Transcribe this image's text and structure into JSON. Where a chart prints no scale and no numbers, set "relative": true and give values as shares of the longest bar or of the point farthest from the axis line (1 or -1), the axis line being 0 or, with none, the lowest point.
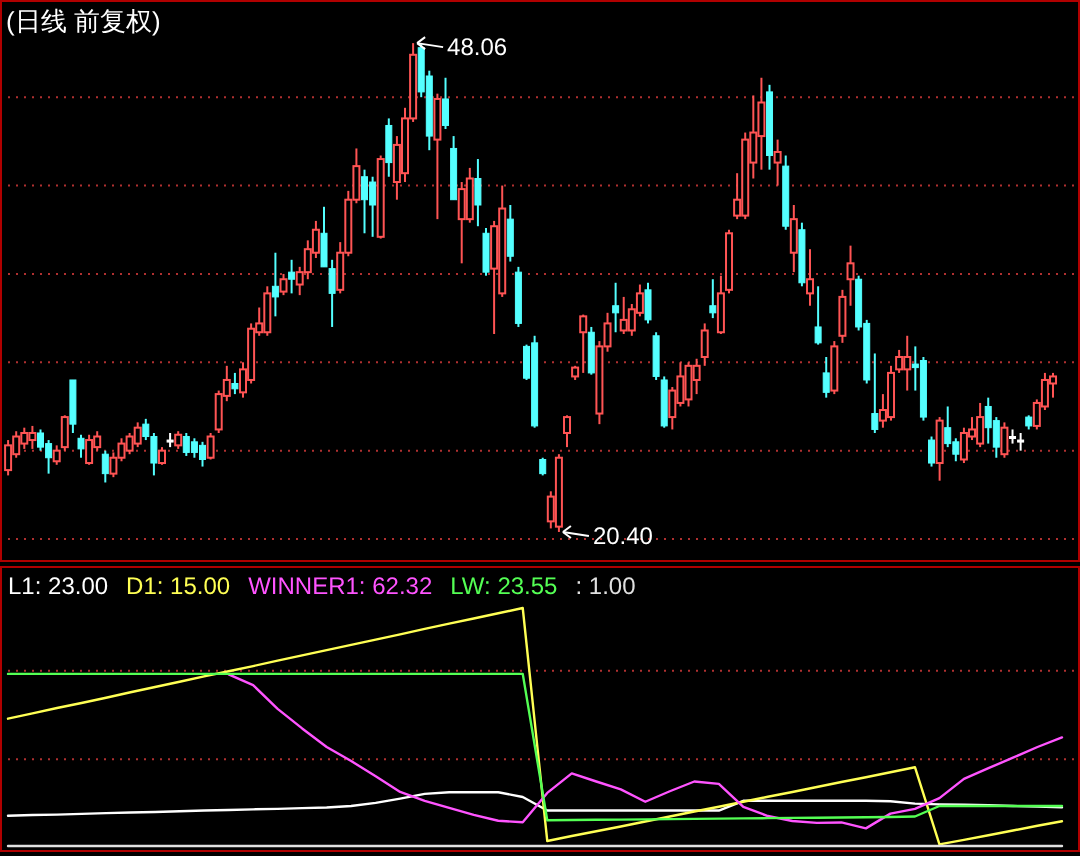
{
  "chart_data": [
    {
      "type": "candlestick",
      "title": "(日线 前复权)",
      "categories": [
        null,
        null,
        null,
        null,
        null,
        null,
        null,
        null,
        null,
        null,
        null,
        null,
        null,
        null,
        null,
        null,
        null,
        null,
        null,
        null,
        null,
        null,
        null,
        null,
        null,
        null,
        null,
        null,
        null,
        null,
        null,
        null,
        null,
        null,
        null,
        null,
        null,
        null,
        null,
        null,
        null,
        null,
        null,
        null,
        null,
        null,
        null,
        null,
        null,
        null,
        null,
        null,
        null,
        null,
        null,
        null,
        null,
        null,
        null,
        null,
        null,
        null,
        null,
        null,
        null,
        null,
        null,
        null,
        null,
        null,
        null,
        null,
        null,
        null,
        null,
        null,
        null,
        null,
        null,
        null,
        null,
        null,
        null,
        null,
        null,
        null,
        null,
        null,
        null,
        null,
        null,
        null,
        null,
        null,
        null,
        null,
        null,
        null,
        null,
        null,
        null,
        null,
        null,
        null,
        null,
        null,
        null,
        null,
        null,
        null,
        null,
        null,
        null,
        null,
        null,
        null,
        null,
        null,
        null,
        null,
        null,
        null,
        null,
        null,
        null,
        null,
        null,
        null,
        null,
        null
      ],
      "ohlc": [
        [
          23.9,
          25.6,
          23.6,
          25.3
        ],
        [
          24.8,
          26.1,
          24.6,
          25.8
        ],
        [
          25.4,
          26.3,
          25.1,
          26.0
        ],
        [
          25.6,
          26.4,
          25.1,
          26.0
        ],
        [
          26.0,
          26.2,
          25.0,
          25.2
        ],
        [
          25.4,
          25.6,
          23.7,
          24.6
        ],
        [
          24.4,
          25.3,
          24.2,
          25.0
        ],
        [
          25.2,
          27.0,
          25.0,
          26.9
        ],
        [
          29.0,
          29.0,
          26.0,
          26.5
        ],
        [
          25.7,
          25.9,
          24.6,
          25.1
        ],
        [
          24.3,
          25.9,
          24.2,
          25.6
        ],
        [
          25.2,
          26.1,
          25.0,
          25.8
        ],
        [
          24.8,
          25.0,
          23.2,
          23.7
        ],
        [
          23.7,
          24.9,
          23.5,
          24.6
        ],
        [
          24.6,
          25.7,
          24.4,
          25.4
        ],
        [
          25.0,
          26.0,
          24.8,
          25.8
        ],
        [
          25.4,
          26.6,
          25.2,
          26.3
        ],
        [
          26.5,
          26.8,
          25.6,
          25.8
        ],
        [
          25.8,
          26.0,
          23.6,
          24.3
        ],
        [
          24.3,
          25.2,
          24.2,
          25.0
        ],
        [
          25.6,
          26.0,
          25.2,
          25.6
        ],
        [
          25.3,
          26.1,
          25.1,
          25.9
        ],
        [
          25.8,
          26.0,
          24.7,
          24.9
        ],
        [
          25.5,
          25.7,
          24.6,
          24.9
        ],
        [
          25.3,
          25.5,
          24.1,
          24.5
        ],
        [
          24.6,
          26.0,
          24.5,
          25.8
        ],
        [
          26.2,
          28.4,
          26.0,
          28.2
        ],
        [
          28.1,
          29.8,
          27.8,
          29.0
        ],
        [
          28.8,
          29.4,
          28.2,
          28.5
        ],
        [
          28.3,
          30.0,
          28.0,
          29.6
        ],
        [
          29.0,
          32.2,
          28.8,
          31.9
        ],
        [
          31.7,
          33.1,
          31.5,
          32.2
        ],
        [
          31.7,
          34.3,
          31.5,
          33.9
        ],
        [
          34.3,
          36.2,
          32.6,
          33.7
        ],
        [
          34.0,
          35.0,
          33.8,
          34.7
        ],
        [
          35.1,
          35.8,
          33.9,
          34.7
        ],
        [
          34.4,
          35.4,
          33.8,
          35.1
        ],
        [
          35.1,
          36.9,
          34.7,
          36.4
        ],
        [
          36.2,
          38.0,
          35.9,
          37.5
        ],
        [
          37.3,
          38.8,
          35.4,
          35.4
        ],
        [
          35.3,
          35.8,
          32.0,
          33.9
        ],
        [
          34.1,
          36.8,
          33.9,
          36.2
        ],
        [
          36.2,
          39.7,
          36.0,
          39.2
        ],
        [
          39.2,
          42.1,
          39.0,
          41.1
        ],
        [
          40.5,
          40.9,
          37.3,
          39.2
        ],
        [
          40.2,
          40.5,
          37.1,
          38.9
        ],
        [
          37.1,
          41.7,
          37.0,
          41.5
        ],
        [
          43.4,
          43.8,
          40.5,
          41.3
        ],
        [
          40.2,
          42.8,
          39.2,
          42.3
        ],
        [
          40.7,
          44.4,
          40.2,
          43.8
        ],
        [
          43.8,
          48.06,
          43.6,
          47.4
        ],
        [
          47.8,
          48.0,
          45.0,
          45.3
        ],
        [
          46.2,
          46.5,
          42.0,
          42.8
        ],
        [
          42.6,
          45.2,
          38.1,
          44.9
        ],
        [
          44.9,
          46.1,
          43.2,
          43.4
        ],
        [
          42.1,
          42.8,
          39.2,
          39.2
        ],
        [
          38.1,
          40.2,
          35.6,
          39.8
        ],
        [
          38.1,
          41.0,
          37.9,
          40.4
        ],
        [
          40.4,
          41.5,
          37.7,
          38.9
        ],
        [
          37.3,
          37.6,
          34.9,
          35.1
        ],
        [
          35.3,
          38.0,
          31.6,
          37.7
        ],
        [
          33.9,
          40.0,
          33.7,
          38.7
        ],
        [
          38.1,
          38.9,
          35.7,
          36.0
        ],
        [
          35.1,
          35.4,
          32.0,
          32.2
        ],
        [
          30.9,
          31.0,
          29.0,
          29.1
        ],
        [
          31.1,
          31.5,
          26.3,
          26.4
        ],
        [
          24.5,
          24.6,
          23.6,
          23.7
        ],
        [
          21.0,
          22.7,
          20.6,
          22.4
        ],
        [
          20.7,
          24.8,
          20.4,
          24.6
        ],
        [
          26.0,
          27.0,
          25.2,
          26.9
        ],
        [
          29.2,
          29.8,
          29.0,
          29.7
        ],
        [
          31.7,
          32.7,
          29.4,
          32.6
        ],
        [
          31.7,
          32.0,
          29.3,
          29.4
        ],
        [
          27.1,
          31.2,
          26.5,
          30.9
        ],
        [
          30.9,
          32.8,
          30.6,
          32.2
        ],
        [
          33.2,
          34.5,
          31.7,
          32.8
        ],
        [
          31.8,
          33.7,
          31.6,
          32.4
        ],
        [
          31.8,
          33.3,
          31.5,
          33.0
        ],
        [
          32.8,
          34.4,
          32.6,
          33.9
        ],
        [
          34.1,
          34.5,
          32.2,
          32.4
        ],
        [
          31.5,
          31.7,
          29.0,
          29.2
        ],
        [
          29.0,
          29.2,
          26.3,
          26.4
        ],
        [
          26.9,
          28.6,
          26.2,
          28.4
        ],
        [
          27.7,
          30.0,
          27.5,
          29.2
        ],
        [
          27.9,
          30.0,
          27.5,
          29.8
        ],
        [
          29.0,
          30.2,
          28.2,
          29.8
        ],
        [
          30.3,
          32.2,
          29.8,
          31.8
        ],
        [
          33.2,
          34.7,
          32.5,
          32.8
        ],
        [
          31.7,
          34.9,
          31.6,
          33.9
        ],
        [
          34.1,
          37.5,
          33.9,
          37.3
        ],
        [
          38.3,
          40.7,
          38.1,
          39.2
        ],
        [
          38.3,
          43.0,
          38.1,
          42.6
        ],
        [
          41.3,
          45.1,
          40.4,
          43.0
        ],
        [
          42.8,
          46.1,
          40.9,
          44.7
        ],
        [
          45.3,
          45.7,
          40.9,
          41.7
        ],
        [
          41.3,
          42.6,
          40.0,
          41.9
        ],
        [
          41.1,
          41.7,
          37.5,
          37.7
        ],
        [
          36.2,
          38.9,
          35.1,
          38.1
        ],
        [
          37.5,
          37.9,
          34.3,
          34.5
        ],
        [
          33.9,
          36.4,
          33.2,
          34.7
        ],
        [
          32.0,
          34.3,
          31.0,
          31.1
        ],
        [
          29.4,
          30.3,
          28.0,
          28.3
        ],
        [
          28.4,
          31.2,
          28.2,
          30.9
        ],
        [
          31.5,
          34.1,
          31.1,
          33.7
        ],
        [
          34.7,
          36.6,
          33.2,
          35.6
        ],
        [
          34.7,
          34.9,
          31.8,
          32.0
        ],
        [
          32.2,
          32.4,
          28.8,
          29.0
        ],
        [
          27.1,
          30.5,
          26.0,
          26.2
        ],
        [
          26.7,
          28.2,
          26.3,
          27.3
        ],
        [
          26.9,
          29.8,
          26.7,
          29.4
        ],
        [
          29.6,
          30.7,
          29.4,
          30.3
        ],
        [
          29.6,
          31.5,
          28.4,
          30.3
        ],
        [
          29.9,
          30.9,
          28.4,
          29.7
        ],
        [
          30.1,
          30.3,
          26.7,
          26.9
        ],
        [
          25.6,
          25.8,
          24.1,
          24.3
        ],
        [
          24.3,
          26.9,
          23.3,
          26.7
        ],
        [
          26.3,
          27.5,
          25.2,
          25.4
        ],
        [
          25.5,
          25.7,
          24.4,
          24.8
        ],
        [
          24.5,
          26.3,
          24.3,
          26.0
        ],
        [
          25.8,
          26.9,
          25.6,
          26.2
        ],
        [
          25.4,
          27.7,
          25.2,
          26.9
        ],
        [
          27.5,
          28.0,
          25.4,
          26.3
        ],
        [
          26.7,
          26.9,
          24.6,
          25.2
        ],
        [
          24.8,
          26.6,
          24.6,
          26.3
        ],
        [
          25.8,
          26.2,
          25.4,
          25.8
        ],
        [
          25.6,
          26.0,
          25.0,
          25.6
        ],
        [
          26.9,
          27.0,
          26.2,
          26.4
        ],
        [
          26.4,
          27.9,
          26.2,
          27.7
        ],
        [
          27.5,
          29.4,
          27.3,
          29.0
        ],
        [
          28.8,
          29.4,
          28.0,
          29.2
        ]
      ],
      "ylim": [
        18.7,
        50.5
      ],
      "yticks": [
        {
          "value": 20,
          "label": null
        },
        {
          "value": 25,
          "label": null
        },
        {
          "value": 30,
          "label": null
        },
        {
          "value": 35,
          "label": null
        },
        {
          "value": 40,
          "label": null
        },
        {
          "value": 45,
          "label": null
        }
      ],
      "grid": "y",
      "annotations": [
        "48.06",
        "20.40"
      ]
    },
    {
      "type": "line",
      "relative": true,
      "line_style": "solid",
      "categories": [
        null,
        null,
        null,
        null,
        null,
        null,
        null,
        null,
        null,
        null,
        null,
        null,
        null,
        null,
        null,
        null,
        null,
        null,
        null,
        null,
        null,
        null,
        null,
        null,
        null,
        null,
        null,
        null,
        null,
        null,
        null,
        null,
        null,
        null,
        null,
        null,
        null,
        null,
        null,
        null,
        null,
        null,
        null,
        null
      ],
      "ref_lines": [
        {
          "axis": "y",
          "value": 0.364,
          "color": "#b03030",
          "line_style": "dotted"
        },
        {
          "axis": "y",
          "value": 0.736,
          "color": "#b03030",
          "line_style": "dotted"
        }
      ],
      "series": [
        {
          "name": "L1: 23.00",
          "color": "#ffffff",
          "values": [
            0.127,
            0.13,
            0.132,
            0.135,
            0.138,
            0.141,
            0.143,
            0.146,
            0.149,
            0.151,
            0.154,
            0.156,
            0.159,
            0.162,
            0.168,
            0.181,
            0.199,
            0.219,
            0.226,
            0.226,
            0.226,
            0.206,
            0.149,
            0.149,
            0.149,
            0.149,
            0.149,
            0.149,
            0.149,
            0.149,
            0.19,
            0.19,
            0.19,
            0.19,
            0.19,
            0.19,
            0.188,
            0.178,
            0.175,
            0.173,
            0.171,
            0.168,
            0.166,
            0.163
          ]
        },
        {
          "name": "D1: 15.00",
          "color": "#ffff54",
          "values": [
            0.535,
            0.557,
            0.58,
            0.601,
            0.623,
            0.646,
            0.668,
            0.69,
            0.713,
            0.734,
            0.756,
            0.779,
            0.801,
            0.823,
            0.845,
            0.867,
            0.889,
            0.912,
            0.934,
            0.956,
            0.978,
            1,
            0.021,
            0.042,
            0.062,
            0.082,
            0.103,
            0.124,
            0.145,
            0.165,
            0.186,
            0.207,
            0.227,
            0.248,
            0.269,
            0.289,
            0.31,
            0.331,
            0.007,
            0.026,
            0.045,
            0.065,
            0.085,
            0.104
          ]
        },
        {
          "name": "WINNER1: 62.32",
          "color": "#ff54ff",
          "values": [
            null,
            null,
            null,
            null,
            null,
            null,
            null,
            null,
            null,
            0.721,
            0.676,
            0.576,
            0.494,
            0.416,
            0.357,
            0.293,
            0.227,
            0.19,
            0.16,
            0.131,
            0.106,
            0.1,
            0.223,
            0.305,
            0.271,
            0.238,
            0.186,
            0.23,
            0.271,
            0.261,
            0.164,
            0.126,
            0.105,
            0.097,
            0.099,
            0.074,
            0.136,
            0.156,
            0.201,
            0.282,
            0.327,
            0.371,
            0.416,
            0.456
          ]
        },
        {
          "name": "LW: 23.55",
          "color": "#54ff54",
          "values": [
            0.723,
            0.723,
            0.723,
            0.723,
            0.723,
            0.723,
            0.723,
            0.723,
            0.723,
            0.723,
            0.723,
            0.723,
            0.723,
            0.723,
            0.723,
            0.723,
            0.723,
            0.723,
            0.723,
            0.723,
            0.723,
            0.723,
            0.108,
            0.109,
            0.11,
            0.111,
            0.112,
            0.113,
            0.114,
            0.115,
            0.116,
            0.117,
            0.118,
            0.119,
            0.12,
            0.121,
            0.122,
            0.124,
            0.168,
            0.168,
            0.168,
            0.168,
            0.168,
            0.168
          ]
        },
        {
          "name": ": 1.00",
          "color": "#e0e0e0",
          "values": [
            0,
            0,
            0,
            0,
            0,
            0,
            0,
            0,
            0,
            0,
            0,
            0,
            0,
            0,
            0,
            0,
            0,
            0,
            0,
            0,
            0,
            0,
            0,
            0,
            0,
            0,
            0,
            0,
            0,
            0,
            0,
            0,
            0,
            0,
            0,
            0,
            0,
            0,
            0,
            0,
            0,
            0,
            0,
            0
          ]
        }
      ]
    }
  ]
}
